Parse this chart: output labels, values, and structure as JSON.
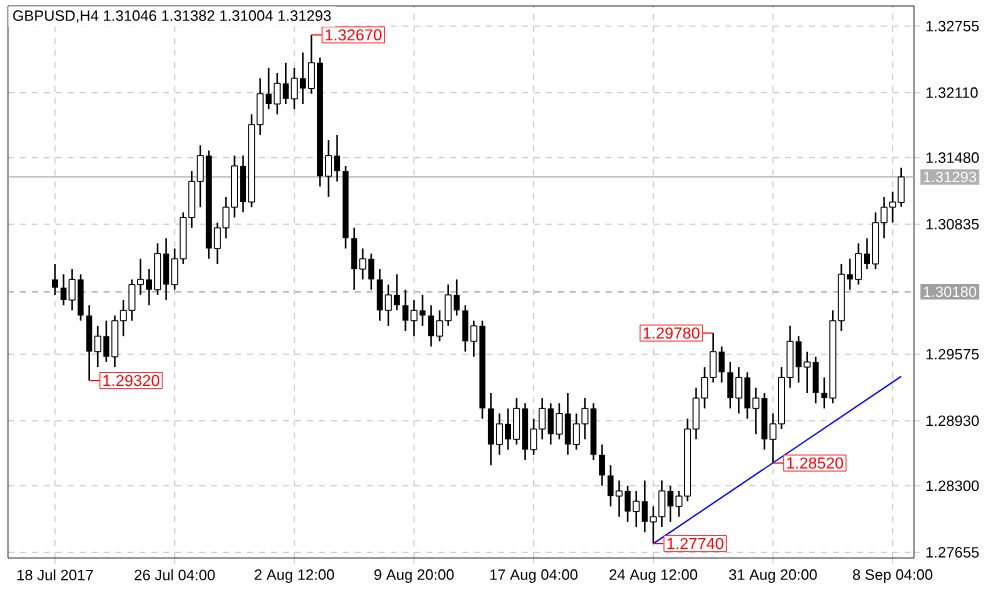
{
  "chart_data": {
    "type": "candlestick",
    "title": "GBPUSD,H4  1.31046 1.31382 1.31004 1.31293",
    "color": "#000000",
    "categories": [
      "18 Jul 2017",
      null,
      null,
      null,
      null,
      null,
      null,
      null,
      null,
      null,
      null,
      null,
      null,
      null,
      "26 Jul 04:00",
      null,
      null,
      null,
      null,
      null,
      null,
      null,
      null,
      null,
      null,
      null,
      null,
      null,
      "2 Aug 12:00",
      null,
      null,
      null,
      null,
      null,
      null,
      null,
      null,
      null,
      null,
      null,
      null,
      null,
      "9 Aug 20:00",
      null,
      null,
      null,
      null,
      null,
      null,
      null,
      null,
      null,
      null,
      null,
      null,
      null,
      "17 Aug 04:00",
      null,
      null,
      null,
      null,
      null,
      null,
      null,
      null,
      null,
      null,
      null,
      null,
      null,
      "24 Aug 12:00",
      null,
      null,
      null,
      null,
      null,
      null,
      null,
      null,
      null,
      null,
      null,
      null,
      null,
      "31 Aug 20:00",
      null,
      null,
      null,
      null,
      null,
      null,
      null,
      null,
      null,
      null,
      null,
      null,
      null,
      "8 Sep 04:00",
      null
    ],
    "ohlc": [
      [
        1.303,
        1.3045,
        1.3015,
        1.3022
      ],
      [
        1.3022,
        1.3035,
        1.3005,
        1.301
      ],
      [
        1.301,
        1.304,
        1.3,
        1.303
      ],
      [
        1.303,
        1.3035,
        1.299,
        1.2995
      ],
      [
        1.2995,
        1.3005,
        1.2932,
        1.296
      ],
      [
        1.296,
        1.2985,
        1.2945,
        1.2975
      ],
      [
        1.2975,
        1.299,
        1.295,
        1.2955
      ],
      [
        1.2955,
        1.2995,
        1.2945,
        1.299
      ],
      [
        1.299,
        1.301,
        1.2975,
        1.3
      ],
      [
        1.3,
        1.303,
        1.299,
        1.3025
      ],
      [
        1.3025,
        1.305,
        1.3015,
        1.303
      ],
      [
        1.303,
        1.304,
        1.3005,
        1.302
      ],
      [
        1.302,
        1.3065,
        1.3015,
        1.3055
      ],
      [
        1.3055,
        1.307,
        1.301,
        1.3025
      ],
      [
        1.3025,
        1.306,
        1.302,
        1.305
      ],
      [
        1.305,
        1.3095,
        1.3045,
        1.309
      ],
      [
        1.309,
        1.3135,
        1.308,
        1.3125
      ],
      [
        1.3125,
        1.316,
        1.31,
        1.315
      ],
      [
        1.315,
        1.3155,
        1.305,
        1.306
      ],
      [
        1.306,
        1.3085,
        1.3045,
        1.308
      ],
      [
        1.308,
        1.311,
        1.307,
        1.31
      ],
      [
        1.31,
        1.315,
        1.309,
        1.314
      ],
      [
        1.314,
        1.315,
        1.3095,
        1.3105
      ],
      [
        1.3105,
        1.319,
        1.31,
        1.318
      ],
      [
        1.318,
        1.3225,
        1.317,
        1.321
      ],
      [
        1.321,
        1.3235,
        1.3195,
        1.32
      ],
      [
        1.32,
        1.323,
        1.319,
        1.322
      ],
      [
        1.322,
        1.324,
        1.32,
        1.3205
      ],
      [
        1.3205,
        1.3235,
        1.3195,
        1.3225
      ],
      [
        1.3225,
        1.325,
        1.32,
        1.3215
      ],
      [
        1.3215,
        1.3267,
        1.321,
        1.324
      ],
      [
        1.324,
        1.3245,
        1.312,
        1.313
      ],
      [
        1.313,
        1.3165,
        1.311,
        1.315
      ],
      [
        1.315,
        1.317,
        1.3125,
        1.3135
      ],
      [
        1.3135,
        1.314,
        1.306,
        1.307
      ],
      [
        1.307,
        1.308,
        1.302,
        1.304
      ],
      [
        1.304,
        1.306,
        1.303,
        1.305
      ],
      [
        1.305,
        1.3055,
        1.302,
        1.303
      ],
      [
        1.303,
        1.304,
        1.299,
        1.3
      ],
      [
        1.3,
        1.3025,
        1.2985,
        1.3015
      ],
      [
        1.3015,
        1.3035,
        1.3,
        1.3005
      ],
      [
        1.3005,
        1.302,
        1.298,
        1.299
      ],
      [
        1.299,
        1.301,
        1.2975,
        1.3
      ],
      [
        1.3,
        1.3015,
        1.2985,
        1.2995
      ],
      [
        1.2995,
        1.3005,
        1.2965,
        1.2975
      ],
      [
        1.2975,
        1.3,
        1.297,
        1.299
      ],
      [
        1.299,
        1.3025,
        1.2985,
        1.3015
      ],
      [
        1.3015,
        1.303,
        1.2995,
        1.3
      ],
      [
        1.3,
        1.3005,
        1.296,
        1.297
      ],
      [
        1.297,
        1.299,
        1.2955,
        1.2985
      ],
      [
        1.2985,
        1.299,
        1.2895,
        1.2905
      ],
      [
        1.2905,
        1.292,
        1.285,
        1.287
      ],
      [
        1.287,
        1.29,
        1.286,
        1.289
      ],
      [
        1.289,
        1.2905,
        1.2865,
        1.2875
      ],
      [
        1.2875,
        1.2915,
        1.287,
        1.2905
      ],
      [
        1.2905,
        1.291,
        1.2855,
        1.2865
      ],
      [
        1.2865,
        1.2895,
        1.286,
        1.2885
      ],
      [
        1.2885,
        1.2915,
        1.2875,
        1.2905
      ],
      [
        1.2905,
        1.291,
        1.287,
        1.288
      ],
      [
        1.288,
        1.291,
        1.2875,
        1.29
      ],
      [
        1.29,
        1.292,
        1.286,
        1.287
      ],
      [
        1.287,
        1.29,
        1.2865,
        1.289
      ],
      [
        1.289,
        1.2915,
        1.2875,
        1.2905
      ],
      [
        1.2905,
        1.291,
        1.2855,
        1.286
      ],
      [
        1.286,
        1.287,
        1.283,
        1.284
      ],
      [
        1.284,
        1.285,
        1.281,
        1.282
      ],
      [
        1.282,
        1.2835,
        1.28,
        1.2825
      ],
      [
        1.2825,
        1.283,
        1.2795,
        1.2805
      ],
      [
        1.2805,
        1.2825,
        1.279,
        1.2815
      ],
      [
        1.2815,
        1.2835,
        1.2785,
        1.2795
      ],
      [
        1.2795,
        1.281,
        1.2774,
        1.28
      ],
      [
        1.28,
        1.2835,
        1.279,
        1.2825
      ],
      [
        1.2825,
        1.283,
        1.2795,
        1.281
      ],
      [
        1.281,
        1.2825,
        1.28,
        1.282
      ],
      [
        1.282,
        1.2895,
        1.2815,
        1.2885
      ],
      [
        1.2885,
        1.2925,
        1.2875,
        1.2915
      ],
      [
        1.2915,
        1.2945,
        1.2905,
        1.2935
      ],
      [
        1.2935,
        1.2978,
        1.293,
        1.296
      ],
      [
        1.296,
        1.2965,
        1.293,
        1.294
      ],
      [
        1.294,
        1.295,
        1.2905,
        1.2915
      ],
      [
        1.2915,
        1.2945,
        1.29,
        1.2935
      ],
      [
        1.2935,
        1.294,
        1.2895,
        1.2905
      ],
      [
        1.2905,
        1.2925,
        1.288,
        1.2915
      ],
      [
        1.2915,
        1.292,
        1.2865,
        1.2875
      ],
      [
        1.2875,
        1.29,
        1.2852,
        1.289
      ],
      [
        1.289,
        1.2945,
        1.2885,
        1.2935
      ],
      [
        1.2935,
        1.2985,
        1.2925,
        1.297
      ],
      [
        1.297,
        1.2975,
        1.293,
        1.2945
      ],
      [
        1.2945,
        1.296,
        1.292,
        1.295
      ],
      [
        1.295,
        1.2955,
        1.291,
        1.292
      ],
      [
        1.292,
        1.2935,
        1.2905,
        1.2915
      ],
      [
        1.2915,
        1.3,
        1.291,
        1.299
      ],
      [
        1.299,
        1.3045,
        1.298,
        1.3035
      ],
      [
        1.3035,
        1.305,
        1.302,
        1.303
      ],
      [
        1.303,
        1.3065,
        1.3025,
        1.3055
      ],
      [
        1.3055,
        1.307,
        1.304,
        1.3045
      ],
      [
        1.3045,
        1.3095,
        1.304,
        1.3085
      ],
      [
        1.3085,
        1.311,
        1.307,
        1.31
      ],
      [
        1.31,
        1.3115,
        1.3085,
        1.3105
      ],
      [
        1.31046,
        1.31382,
        1.31004,
        1.31293
      ]
    ],
    "series": [
      {
        "type": "line",
        "color": "#0000ff",
        "values": [
          null,
          null,
          null,
          null,
          null,
          null,
          null,
          null,
          null,
          null,
          null,
          null,
          null,
          null,
          null,
          null,
          null,
          null,
          null,
          null,
          null,
          null,
          null,
          null,
          null,
          null,
          null,
          null,
          null,
          null,
          null,
          null,
          null,
          null,
          null,
          null,
          null,
          null,
          null,
          null,
          null,
          null,
          null,
          null,
          null,
          null,
          null,
          null,
          null,
          null,
          null,
          null,
          null,
          null,
          null,
          null,
          null,
          null,
          null,
          null,
          null,
          null,
          null,
          null,
          null,
          null,
          null,
          null,
          null,
          null,
          1.2774,
          null,
          null,
          null,
          null,
          null,
          null,
          null,
          null,
          null,
          null,
          null,
          null,
          null,
          null,
          null,
          null,
          null,
          null,
          null,
          null,
          null,
          null,
          null,
          null,
          null,
          null,
          null,
          null,
          1.2936
        ]
      }
    ],
    "ylim": [
      1.276,
      1.3295
    ],
    "yticks": [
      1.27655,
      {
        "value": 1.283,
        "label": "1.28300"
      },
      {
        "value": 1.2893,
        "label": "1.28930"
      },
      1.29575,
      1.30835,
      {
        "value": 1.3148,
        "label": "1.31480"
      },
      {
        "value": 1.3211,
        "label": "1.32110"
      },
      1.32755
    ],
    "grid": true,
    "ref_lines": [
      {
        "axis": "y",
        "value": 1.3018,
        "label": "1.30180",
        "color": "#a0a0a0",
        "line_style": "dashed"
      },
      {
        "axis": "y",
        "value": 1.31293,
        "label": "1.31293",
        "color": "#b0b0b0",
        "line_style": "solid"
      }
    ],
    "annotations": [
      "1.29320",
      "1.32670",
      "1.29780",
      "1.28520",
      "1.27740"
    ]
  }
}
